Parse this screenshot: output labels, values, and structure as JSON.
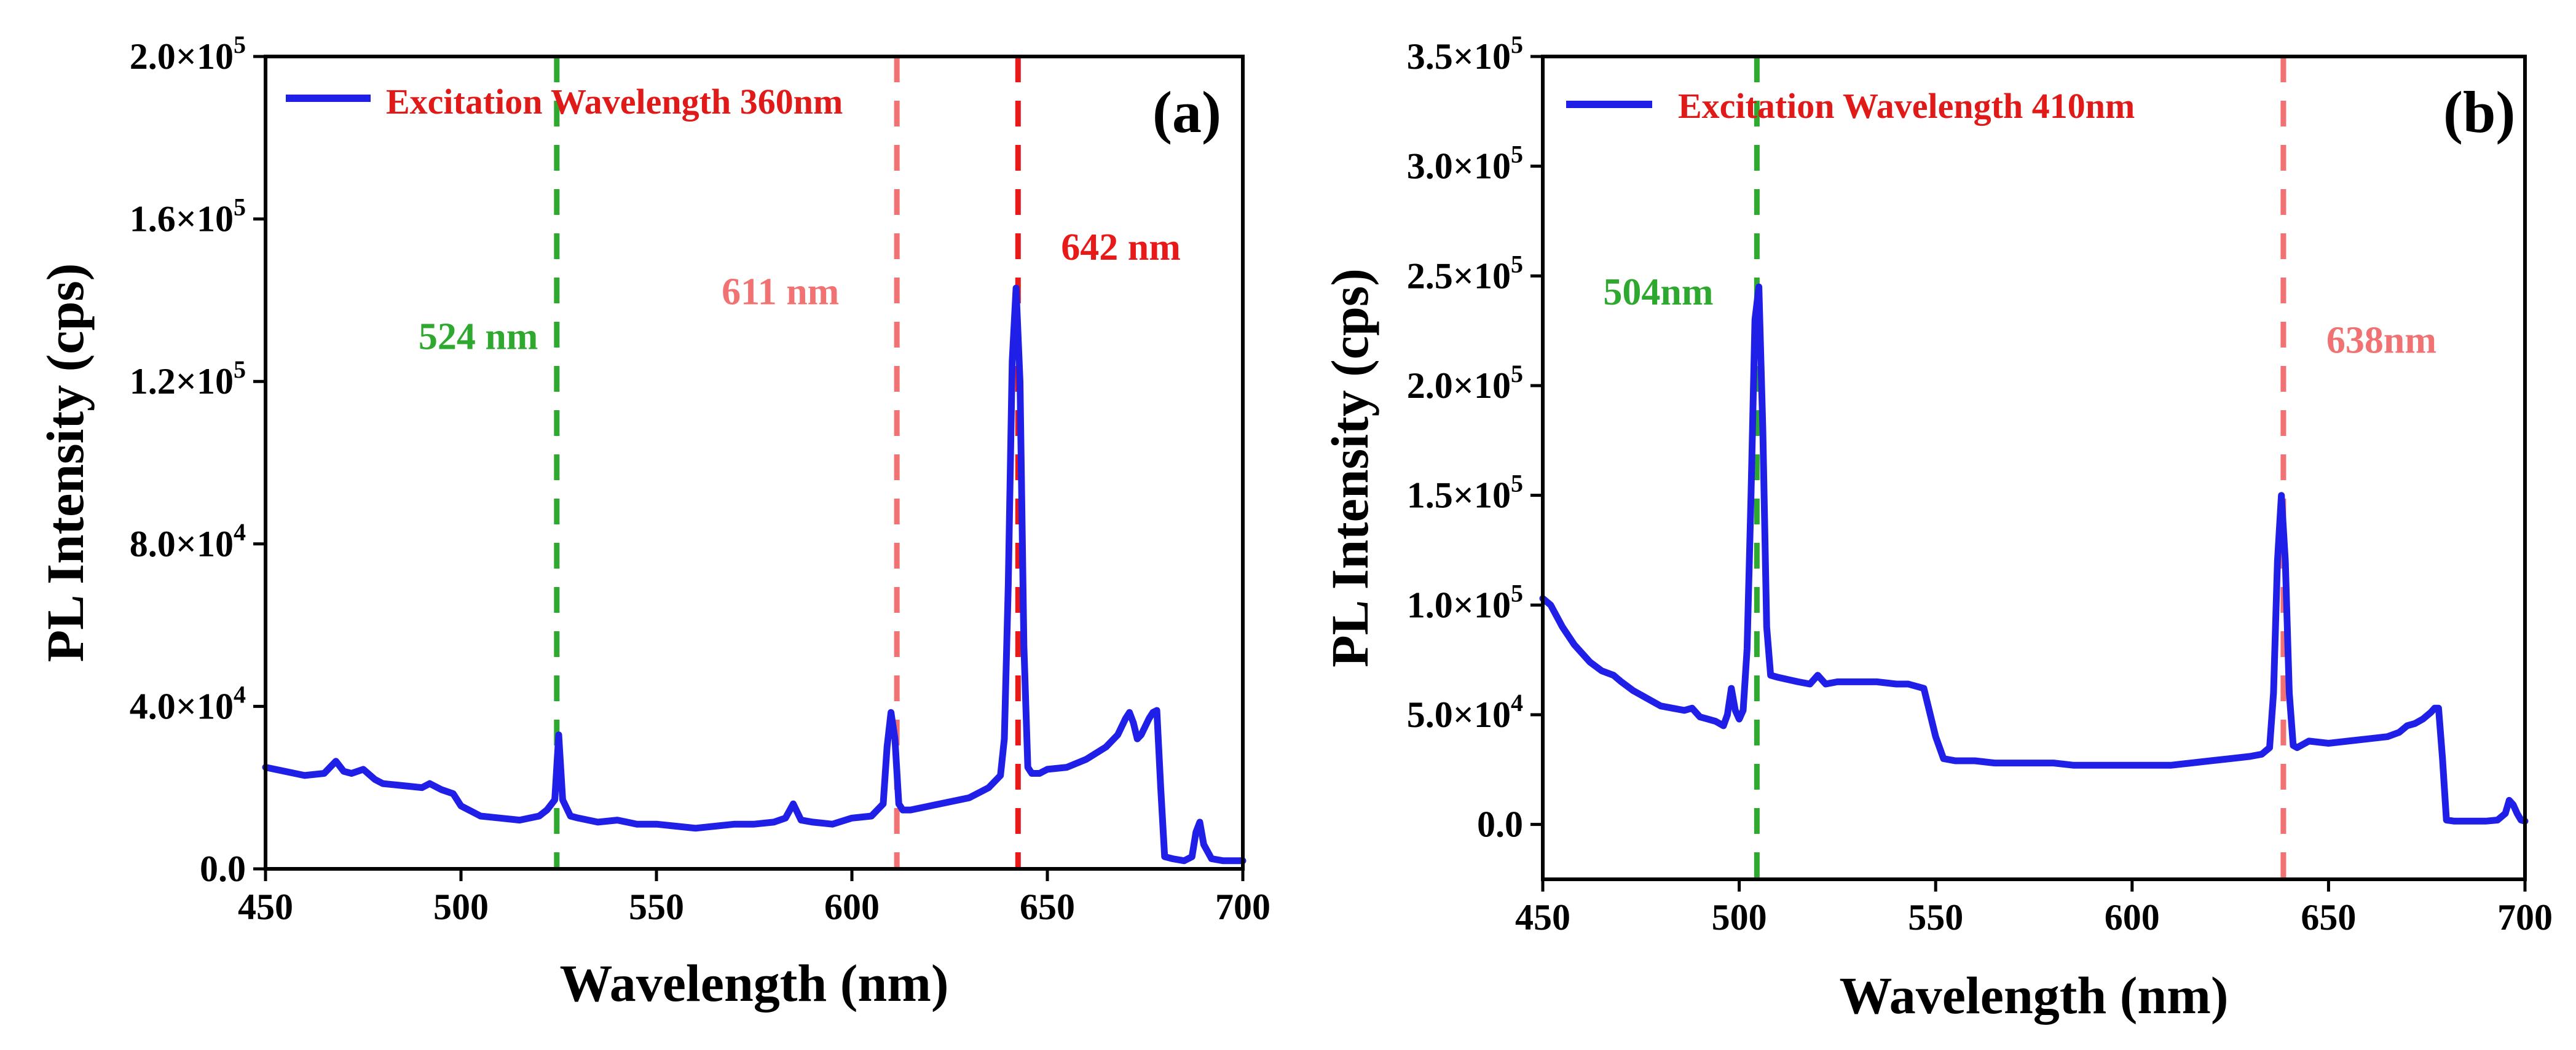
{
  "chart_data": [
    {
      "type": "line",
      "panel_label": "(a)",
      "xlabel": "Wavelength (nm)",
      "ylabel": "PL Intensity (cps)",
      "xlim": [
        450,
        700
      ],
      "ylim": [
        0,
        200000
      ],
      "x_ticks": [
        450,
        500,
        550,
        600,
        650,
        700
      ],
      "x_tick_labels": [
        "450",
        "500",
        "550",
        "600",
        "650",
        "700"
      ],
      "y_ticks": [
        0,
        40000,
        80000,
        120000,
        160000,
        200000
      ],
      "y_tick_labels": [
        {
          "mantissa": "0.0",
          "exp": ""
        },
        {
          "mantissa": "4.0×10",
          "exp": "4"
        },
        {
          "mantissa": "8.0×10",
          "exp": "4"
        },
        {
          "mantissa": "1.2×10",
          "exp": "5"
        },
        {
          "mantissa": "1.6×10",
          "exp": "5"
        },
        {
          "mantissa": "2.0×10",
          "exp": "5"
        }
      ],
      "grid": false,
      "legend": {
        "label": "Excitation Wavelength 360nm",
        "line_color": "#1f1fe8",
        "text_color": "#e01919",
        "position": "top-left"
      },
      "series": [
        {
          "name": "Excitation Wavelength 360nm",
          "color": "#1f1fe8",
          "x": [
            450,
            455,
            460,
            465,
            468,
            470,
            472,
            475,
            478,
            480,
            485,
            490,
            492,
            495,
            498,
            500,
            505,
            510,
            515,
            520,
            522,
            524,
            525,
            526,
            528,
            530,
            535,
            540,
            545,
            550,
            555,
            560,
            565,
            570,
            575,
            580,
            583,
            585,
            587,
            590,
            595,
            600,
            605,
            608,
            609,
            610,
            611,
            612,
            613,
            615,
            620,
            625,
            630,
            635,
            638,
            639,
            640,
            641,
            642,
            643,
            644,
            645,
            646,
            648,
            650,
            655,
            660,
            665,
            668,
            670,
            671,
            672,
            673,
            674,
            675,
            676,
            677,
            678,
            679,
            680,
            682,
            685,
            687,
            688,
            689,
            690,
            692,
            695,
            698,
            700
          ],
          "values": [
            25000,
            24000,
            23000,
            23500,
            26500,
            24000,
            23500,
            24500,
            22000,
            21000,
            20500,
            20000,
            21000,
            19500,
            18500,
            15500,
            13000,
            12500,
            12000,
            13000,
            14500,
            17000,
            33000,
            17000,
            13000,
            12500,
            11500,
            12000,
            11000,
            11000,
            10500,
            10000,
            10500,
            11000,
            11000,
            11500,
            12500,
            16000,
            12000,
            11500,
            11000,
            12500,
            13000,
            16000,
            30000,
            38500,
            32000,
            16000,
            14500,
            14500,
            15500,
            16500,
            17500,
            20000,
            23000,
            32000,
            70000,
            125000,
            143000,
            120000,
            55000,
            25000,
            23500,
            23500,
            24500,
            25000,
            27000,
            30000,
            33000,
            37000,
            38500,
            36000,
            32000,
            33000,
            35000,
            37000,
            38500,
            39000,
            20000,
            3000,
            2500,
            2000,
            3000,
            9000,
            11500,
            6000,
            2500,
            2000,
            2000,
            2000
          ]
        }
      ],
      "annotations": [
        {
          "label": "524 nm",
          "x": 524.5,
          "color": "#2fa82f",
          "line_style": "dashed",
          "text_value": 128000
        },
        {
          "label": "611 nm",
          "x": 611.5,
          "color": "#f07272",
          "line_style": "dashed",
          "text_value": 139000
        },
        {
          "label": "642 nm",
          "x": 642.5,
          "color": "#e81919",
          "line_style": "dashed",
          "text_value": 150000
        }
      ]
    },
    {
      "type": "line",
      "panel_label": "(b)",
      "xlabel": "Wavelength (nm)",
      "ylabel": "PL Intensity (cps)",
      "xlim": [
        450,
        700
      ],
      "ylim": [
        -25000,
        350000
      ],
      "x_ticks": [
        450,
        500,
        550,
        600,
        650,
        700
      ],
      "x_tick_labels": [
        "450",
        "500",
        "550",
        "600",
        "650",
        "700"
      ],
      "y_ticks": [
        0,
        50000,
        100000,
        150000,
        200000,
        250000,
        300000,
        350000
      ],
      "y_tick_labels": [
        {
          "mantissa": "0.0",
          "exp": ""
        },
        {
          "mantissa": "5.0×10",
          "exp": "4"
        },
        {
          "mantissa": "1.0×10",
          "exp": "5"
        },
        {
          "mantissa": "1.5×10",
          "exp": "5"
        },
        {
          "mantissa": "2.0×10",
          "exp": "5"
        },
        {
          "mantissa": "2.5×10",
          "exp": "5"
        },
        {
          "mantissa": "3.0×10",
          "exp": "5"
        },
        {
          "mantissa": "3.5×10",
          "exp": "5"
        }
      ],
      "grid": false,
      "legend": {
        "label": "Excitation Wavelength 410nm",
        "line_color": "#1f1fe8",
        "text_color": "#e01919",
        "position": "top-left"
      },
      "series": [
        {
          "name": "Excitation Wavelength 410nm",
          "color": "#1f1fe8",
          "x": [
            450,
            452,
            455,
            458,
            460,
            462,
            465,
            468,
            470,
            473,
            475,
            478,
            480,
            483,
            486,
            488,
            490,
            492,
            494,
            496,
            497,
            498,
            499,
            500,
            501,
            502,
            503,
            504,
            505,
            506,
            507,
            508,
            510,
            515,
            518,
            520,
            522,
            525,
            530,
            535,
            540,
            543,
            545,
            547,
            550,
            552,
            555,
            560,
            565,
            570,
            575,
            580,
            585,
            590,
            595,
            600,
            605,
            610,
            615,
            620,
            625,
            630,
            633,
            635,
            636,
            637,
            638,
            639,
            640,
            641,
            642,
            645,
            650,
            655,
            660,
            665,
            668,
            670,
            672,
            674,
            676,
            677,
            678,
            679,
            680,
            682,
            685,
            690,
            693,
            695,
            696,
            697,
            698,
            699,
            700
          ],
          "values": [
            103000,
            100000,
            90000,
            82000,
            78000,
            74000,
            70000,
            68000,
            65000,
            61000,
            59000,
            56000,
            54000,
            53000,
            52000,
            53000,
            49000,
            48000,
            47000,
            45000,
            50000,
            62000,
            52000,
            48000,
            52000,
            80000,
            150000,
            230000,
            245000,
            180000,
            90000,
            68000,
            67000,
            65000,
            64000,
            68000,
            64000,
            65000,
            65000,
            65000,
            64000,
            64000,
            63000,
            62000,
            40000,
            30000,
            29000,
            29000,
            28000,
            28000,
            28000,
            28000,
            27000,
            27000,
            27000,
            27000,
            27000,
            27000,
            28000,
            29000,
            30000,
            31000,
            32000,
            35000,
            60000,
            120000,
            150000,
            120000,
            60000,
            36000,
            35000,
            38000,
            37000,
            38000,
            39000,
            40000,
            42000,
            45000,
            46000,
            48000,
            51000,
            53000,
            53000,
            30000,
            2000,
            1500,
            1500,
            1500,
            2000,
            5000,
            11000,
            9000,
            5000,
            2000,
            1500
          ]
        }
      ],
      "annotations": [
        {
          "label": "504nm",
          "x": 504.5,
          "color": "#2fa82f",
          "line_style": "dashed",
          "text_value": 237000
        },
        {
          "label": "638nm",
          "x": 638.5,
          "color": "#f07272",
          "line_style": "dashed",
          "text_value": 215000
        }
      ]
    }
  ]
}
